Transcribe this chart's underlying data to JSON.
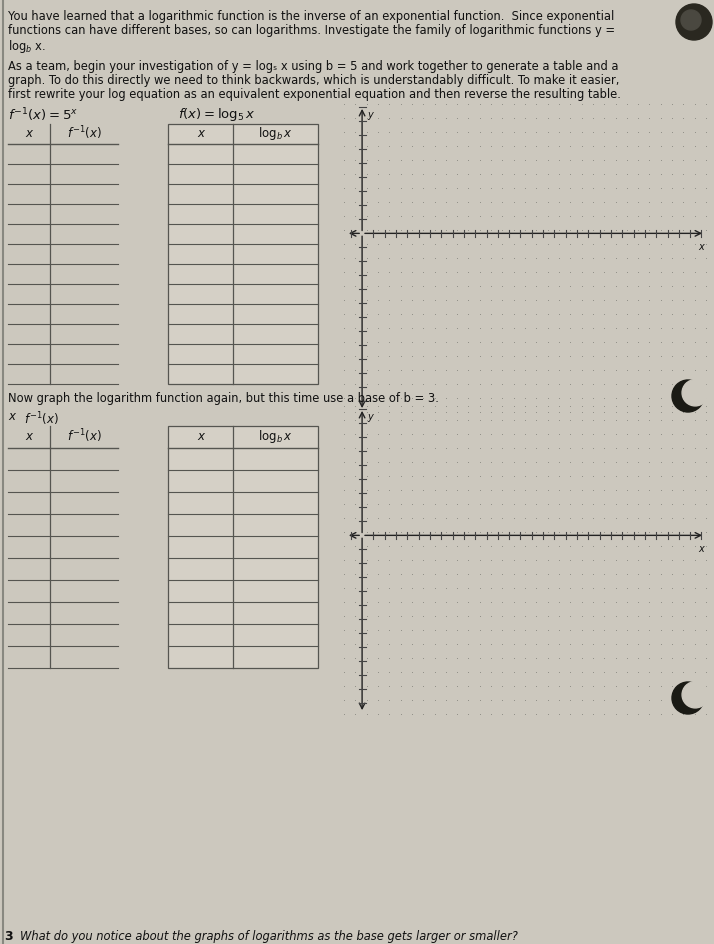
{
  "bg_color": "#ccc8be",
  "text_color": "#111111",
  "para1_line1": "You have learned that a logarithmic function is the inverse of an exponential function.  Since exponential",
  "para1_line2": "functions can have different bases, so can logarithms. Investigate the family of logarithmic functions y =",
  "para1_line3": "logₛ x.",
  "para2_line1": "As a team, begin your investigation of y = logₛ x using b = 5 and work together to generate a table and a",
  "para2_line2": "graph. To do this directly we need to think backwards, which is understandably difficult. To make it easier,",
  "para2_line3": "first rewrite your log equation as an equivalent exponential equation and then reverse the resulting table.",
  "para3": "Now graph the logarithm function again, but this time use a base of b = 3.",
  "para4": "What do you notice about the graphs of logarithms as the base gets larger or smaller?",
  "grid_dot_color": "#888880",
  "axis_color": "#222222",
  "tick_color": "#444444",
  "table_line_color": "#555550",
  "moon_color": "#1a1a14"
}
